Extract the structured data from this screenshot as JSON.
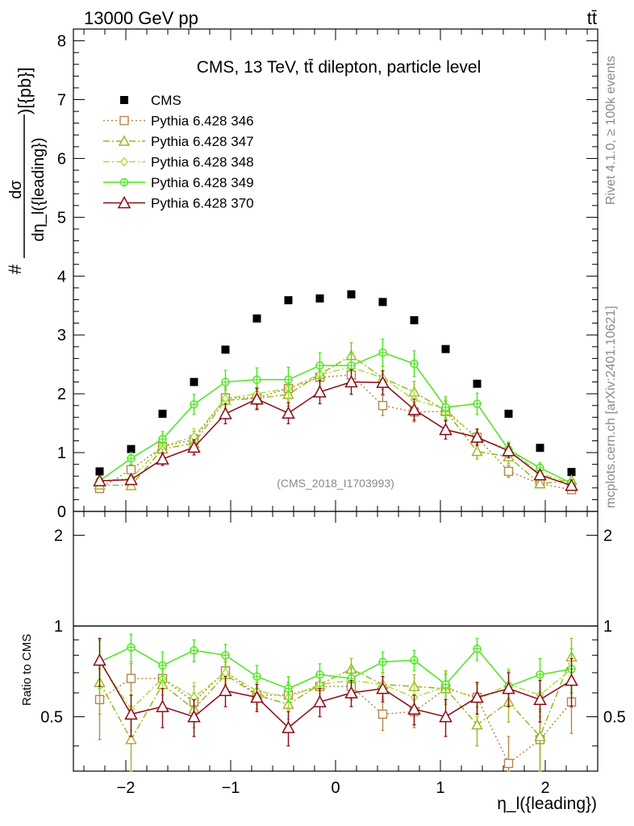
{
  "header": {
    "left": "13000 GeV pp",
    "right": "tt̄"
  },
  "side": {
    "top": "Rivet 4.1.0, ≥ 100k events",
    "bottom": "mcplots.cern.ch [arXiv:2401.10621]"
  },
  "colors": {
    "cms": "#000000",
    "p346": "#b5864a",
    "p347": "#9cb520",
    "p348": "#a9df3a",
    "p349": "#4ae61c",
    "p370": "#8b0a18"
  },
  "chart_data": [
    {
      "type": "scatter",
      "title": "CMS, 13 TeV, tt̄ dilepton, particle level",
      "watermark": "(CMS_2018_I1703993)",
      "ylabel_num": "dσ",
      "ylabel_den": "dη_l({leading})",
      "ylabel_prefix": "#",
      "ylabel_suffix": ")[{pb}]",
      "xlim": [
        -2.5,
        2.5
      ],
      "ylim": [
        0,
        8.2
      ],
      "yticks": [
        "0",
        "1",
        "2",
        "3",
        "4",
        "5",
        "6",
        "7",
        "8"
      ],
      "x": [
        -2.25,
        -1.95,
        -1.65,
        -1.35,
        -1.05,
        -0.75,
        -0.45,
        -0.15,
        0.15,
        0.45,
        0.75,
        1.05,
        1.35,
        1.65,
        1.95,
        2.25
      ],
      "series": [
        {
          "name": "CMS",
          "key": "cms",
          "marker": "square-filled",
          "line": "none",
          "values": [
            0.68,
            1.06,
            1.66,
            2.2,
            2.75,
            3.28,
            3.59,
            3.62,
            3.69,
            3.56,
            3.25,
            2.76,
            2.17,
            1.66,
            1.08,
            0.67
          ],
          "err": [
            0,
            0,
            0,
            0,
            0,
            0,
            0,
            0,
            0,
            0,
            0,
            0,
            0,
            0,
            0,
            0
          ]
        },
        {
          "name": "Pythia 6.428 346",
          "key": "p346",
          "marker": "square-open",
          "line": "dotted",
          "values": [
            0.39,
            0.71,
            1.1,
            1.22,
            1.93,
            1.93,
            2.09,
            2.28,
            2.32,
            1.8,
            1.69,
            1.7,
            1.26,
            0.68,
            0.47,
            0.37
          ],
          "err": [
            0.05,
            0.08,
            0.12,
            0.14,
            0.18,
            0.18,
            0.2,
            0.2,
            0.2,
            0.17,
            0.17,
            0.17,
            0.14,
            0.1,
            0.07,
            0.05
          ]
        },
        {
          "name": "Pythia 6.428 347",
          "key": "p347",
          "marker": "triangle-open",
          "line": "dashdot",
          "values": [
            0.45,
            0.44,
            1.06,
            1.16,
            1.89,
            1.92,
            1.99,
            2.33,
            2.65,
            2.27,
            2.03,
            1.71,
            1.02,
            0.93,
            0.47,
            0.53
          ],
          "err": [
            0.05,
            0.07,
            0.12,
            0.14,
            0.18,
            0.18,
            0.2,
            0.21,
            0.22,
            0.2,
            0.18,
            0.17,
            0.13,
            0.12,
            0.07,
            0.06
          ]
        },
        {
          "name": "Pythia 6.428 348",
          "key": "p348",
          "marker": "diamond-open",
          "line": "dashdot",
          "values": [
            0.52,
            0.56,
            1.11,
            1.27,
            1.92,
            2.0,
            2.09,
            2.33,
            2.45,
            2.27,
            1.9,
            1.74,
            1.23,
            1.07,
            0.64,
            0.48
          ],
          "err": [
            0.05,
            0.08,
            0.12,
            0.14,
            0.18,
            0.19,
            0.2,
            0.21,
            0.22,
            0.2,
            0.18,
            0.17,
            0.14,
            0.12,
            0.08,
            0.06
          ]
        },
        {
          "name": "Pythia 6.428 349",
          "key": "p349",
          "marker": "cross-circle",
          "line": "solid",
          "values": [
            0.52,
            0.9,
            1.23,
            1.82,
            2.2,
            2.24,
            2.24,
            2.48,
            2.48,
            2.7,
            2.51,
            1.77,
            1.83,
            1.05,
            0.74,
            0.48
          ],
          "err": [
            0.06,
            0.1,
            0.13,
            0.17,
            0.2,
            0.2,
            0.21,
            0.22,
            0.22,
            0.23,
            0.22,
            0.18,
            0.18,
            0.12,
            0.09,
            0.06
          ]
        },
        {
          "name": "Pythia 6.428 370",
          "key": "p370",
          "marker": "triangle-open-big",
          "line": "solid",
          "values": [
            0.52,
            0.54,
            0.89,
            1.09,
            1.66,
            1.91,
            1.67,
            2.03,
            2.2,
            2.19,
            1.73,
            1.39,
            1.26,
            1.03,
            0.62,
            0.44
          ],
          "err": [
            0.06,
            0.07,
            0.11,
            0.13,
            0.17,
            0.18,
            0.18,
            0.2,
            0.21,
            0.2,
            0.18,
            0.16,
            0.14,
            0.12,
            0.08,
            0.06
          ]
        }
      ]
    },
    {
      "type": "scatter",
      "ylabel": "Ratio to CMS",
      "xlabel": "η_l({leading})",
      "xlim": [
        -2.5,
        2.5
      ],
      "ylim": [
        0.33,
        2.4
      ],
      "ylog": true,
      "xticks": [
        "−2",
        "−1",
        "0",
        "1",
        "2"
      ],
      "yticks_ratio": [
        "0.5",
        "1",
        "2"
      ],
      "x": [
        -2.25,
        -1.95,
        -1.65,
        -1.35,
        -1.05,
        -0.75,
        -0.45,
        -0.15,
        0.15,
        0.45,
        0.75,
        1.05,
        1.35,
        1.65,
        1.95,
        2.25
      ],
      "series": [
        {
          "name": "Pythia 6.428 346",
          "key": "p346",
          "marker": "square-open",
          "line": "dotted",
          "values": [
            0.57,
            0.67,
            0.67,
            0.56,
            0.71,
            0.59,
            0.59,
            0.63,
            0.63,
            0.51,
            0.52,
            0.62,
            0.58,
            0.35,
            0.42,
            0.56
          ],
          "err": [
            0.15,
            0.08,
            0.08,
            0.07,
            0.07,
            0.06,
            0.06,
            0.06,
            0.06,
            0.06,
            0.06,
            0.07,
            0.07,
            0.08,
            0.1,
            0.12
          ]
        },
        {
          "name": "Pythia 6.428 347",
          "key": "p347",
          "marker": "triangle-open",
          "line": "dashdot",
          "values": [
            0.65,
            0.42,
            0.64,
            0.53,
            0.69,
            0.59,
            0.55,
            0.64,
            0.72,
            0.64,
            0.63,
            0.62,
            0.47,
            0.56,
            0.43,
            0.79
          ],
          "err": [
            0.14,
            0.09,
            0.08,
            0.07,
            0.07,
            0.06,
            0.06,
            0.06,
            0.06,
            0.06,
            0.06,
            0.07,
            0.07,
            0.08,
            0.1,
            0.12
          ]
        },
        {
          "name": "Pythia 6.428 348",
          "key": "p348",
          "marker": "diamond-open",
          "line": "dashdot",
          "values": [
            0.76,
            0.53,
            0.67,
            0.58,
            0.7,
            0.61,
            0.58,
            0.64,
            0.66,
            0.64,
            0.58,
            0.63,
            0.57,
            0.64,
            0.59,
            0.72
          ],
          "err": [
            0.14,
            0.08,
            0.08,
            0.07,
            0.07,
            0.06,
            0.06,
            0.06,
            0.06,
            0.06,
            0.06,
            0.07,
            0.07,
            0.08,
            0.09,
            0.12
          ]
        },
        {
          "name": "Pythia 6.428 349",
          "key": "p349",
          "marker": "cross-circle",
          "line": "solid",
          "values": [
            0.76,
            0.85,
            0.74,
            0.83,
            0.8,
            0.68,
            0.62,
            0.69,
            0.67,
            0.76,
            0.77,
            0.64,
            0.84,
            0.63,
            0.69,
            0.72
          ],
          "err": [
            0.14,
            0.09,
            0.08,
            0.07,
            0.07,
            0.06,
            0.06,
            0.06,
            0.06,
            0.06,
            0.06,
            0.07,
            0.07,
            0.08,
            0.09,
            0.12
          ]
        },
        {
          "name": "Pythia 6.428 370",
          "key": "p370",
          "marker": "triangle-open-big",
          "line": "solid",
          "values": [
            0.77,
            0.51,
            0.54,
            0.5,
            0.61,
            0.58,
            0.46,
            0.56,
            0.6,
            0.62,
            0.53,
            0.5,
            0.58,
            0.62,
            0.57,
            0.66
          ],
          "err": [
            0.14,
            0.08,
            0.08,
            0.07,
            0.07,
            0.06,
            0.06,
            0.06,
            0.06,
            0.06,
            0.06,
            0.07,
            0.07,
            0.08,
            0.09,
            0.12
          ]
        }
      ]
    }
  ]
}
